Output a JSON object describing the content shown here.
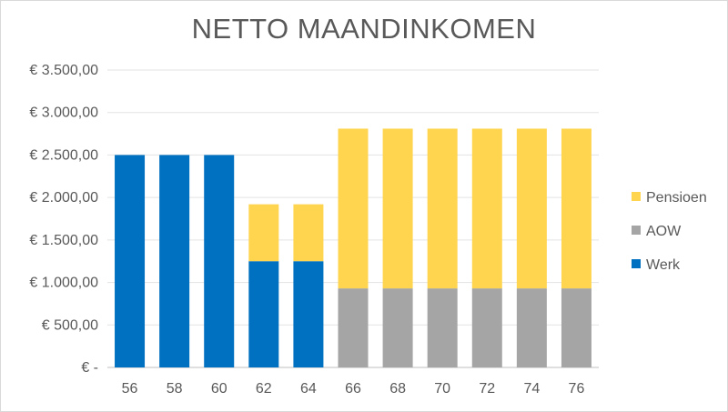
{
  "chart_data": {
    "type": "bar",
    "stacked": true,
    "title": "NETTO MAANDINKOMEN",
    "xlabel": "",
    "ylabel": "",
    "categories": [
      "56",
      "58",
      "60",
      "62",
      "64",
      "66",
      "68",
      "70",
      "72",
      "74",
      "76"
    ],
    "series": [
      {
        "name": "Werk",
        "color": "#0070C0",
        "values": [
          2500,
          2500,
          2500,
          1250,
          1250,
          0,
          0,
          0,
          0,
          0,
          0
        ]
      },
      {
        "name": "AOW",
        "color": "#A5A5A5",
        "values": [
          0,
          0,
          0,
          0,
          0,
          930,
          930,
          930,
          930,
          930,
          930
        ]
      },
      {
        "name": "Pensioen",
        "color": "#FFD54F",
        "values": [
          0,
          0,
          0,
          670,
          670,
          1880,
          1880,
          1880,
          1880,
          1880,
          1880
        ]
      }
    ],
    "ylim": [
      0,
      3500
    ],
    "yticks": [
      0,
      500,
      1000,
      1500,
      2000,
      2500,
      3000,
      3500
    ],
    "yticklabels": [
      "€ -",
      "€ 500,00",
      "€ 1.000,00",
      "€ 1.500,00",
      "€ 2.000,00",
      "€ 2.500,00",
      "€ 3.000,00",
      "€ 3.500,00"
    ],
    "grid": true,
    "legend": {
      "placement": "right",
      "order": [
        "Pensioen",
        "AOW",
        "Werk"
      ]
    }
  }
}
